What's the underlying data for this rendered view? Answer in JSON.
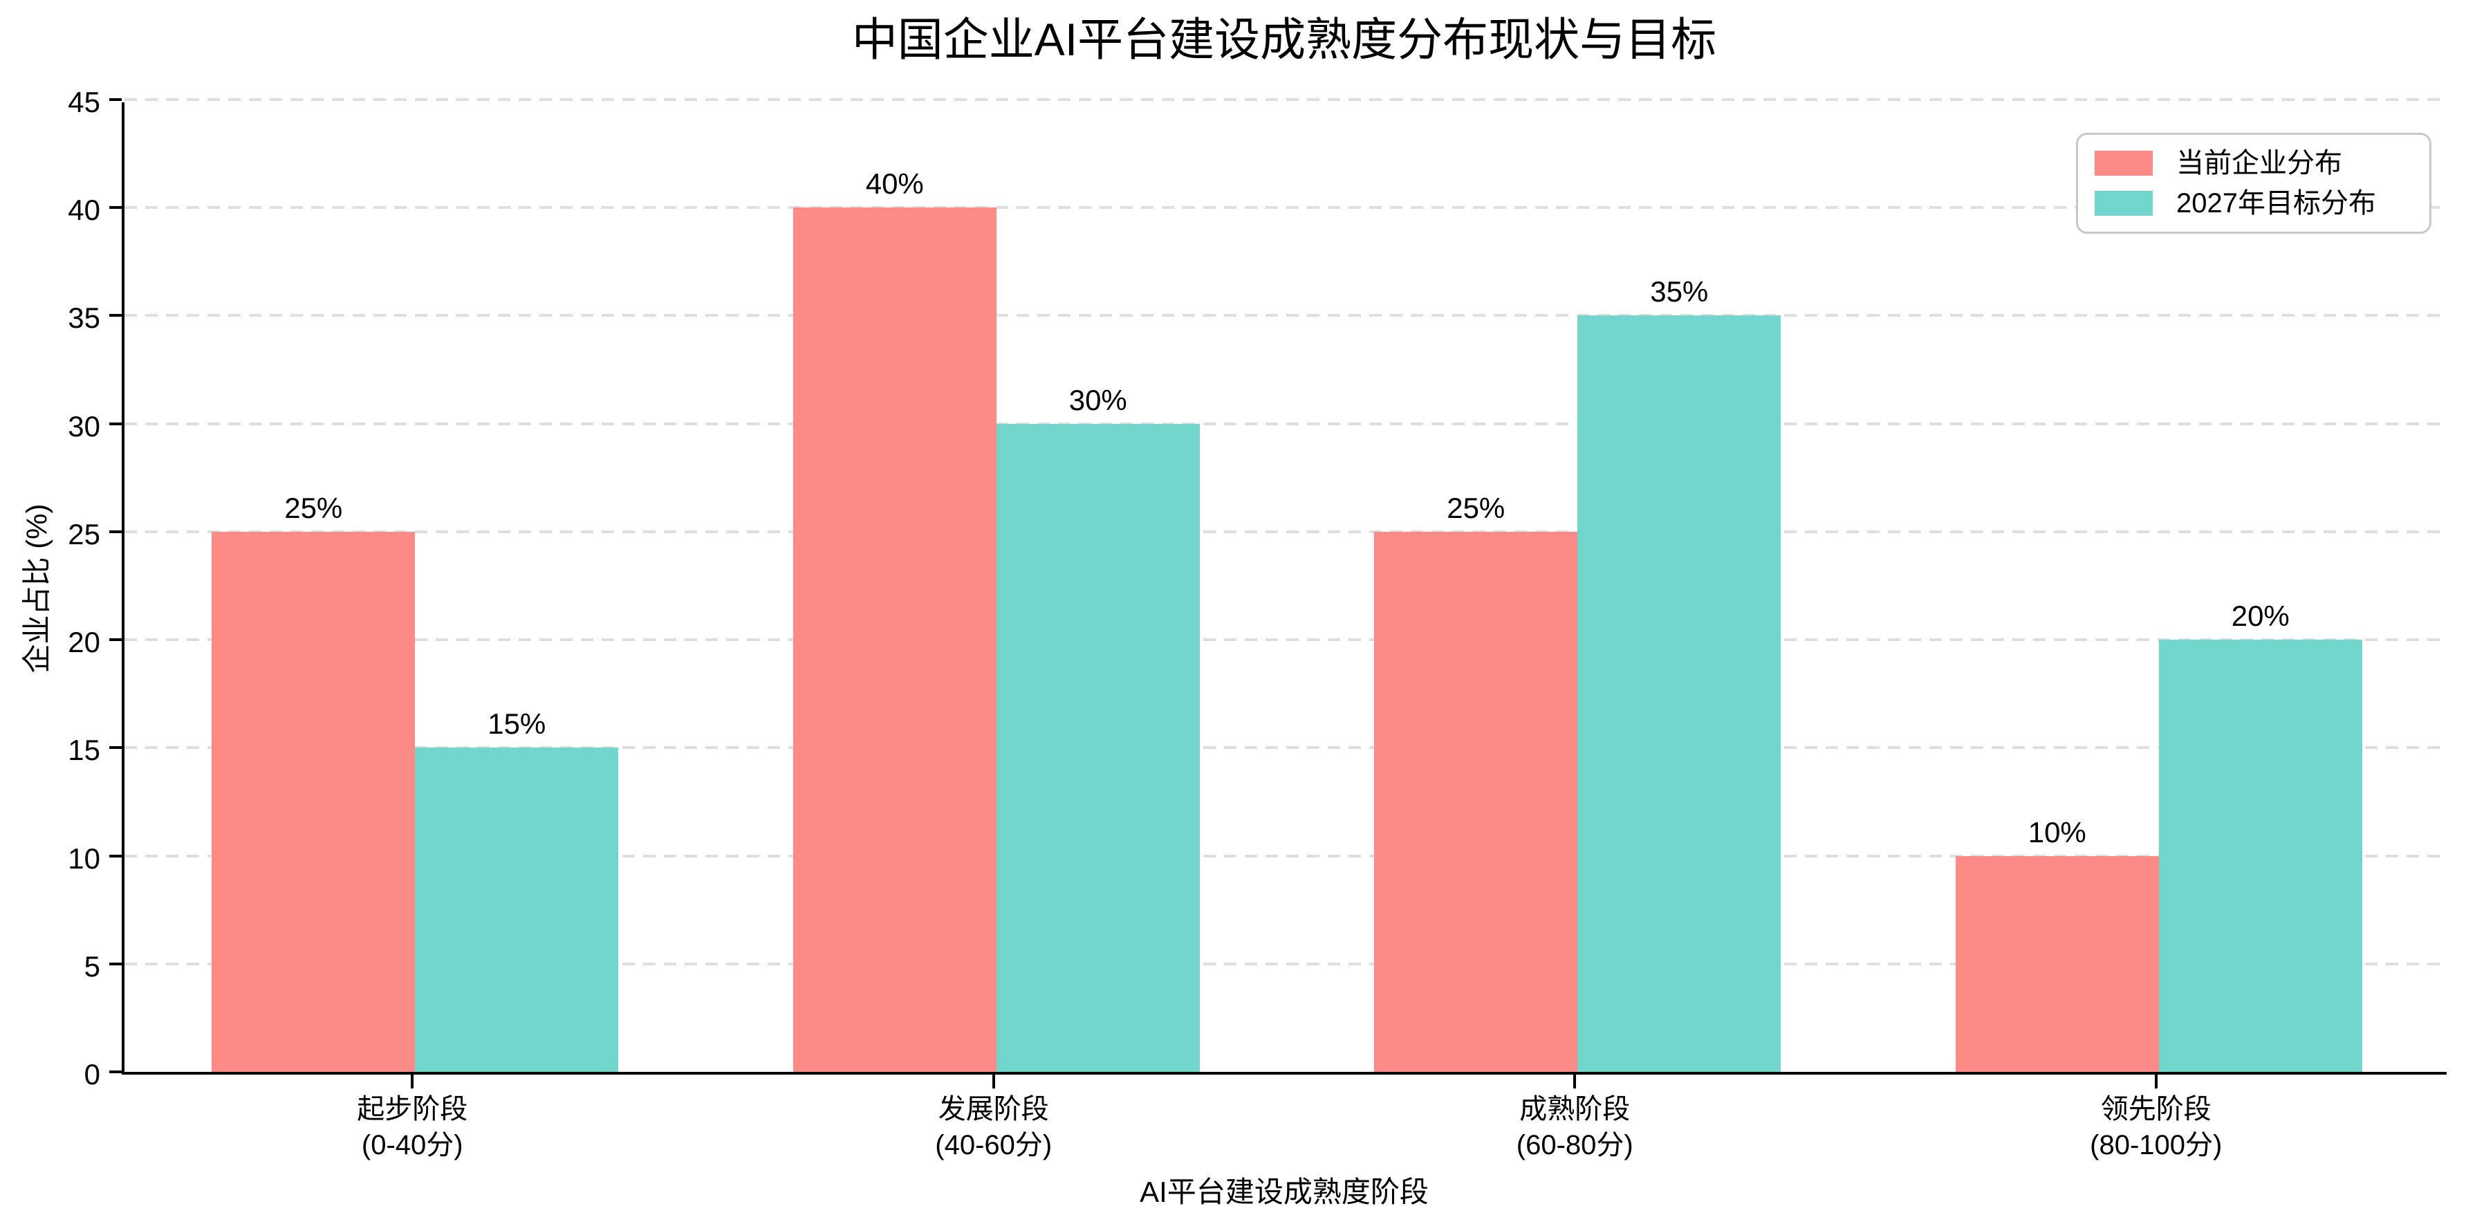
{
  "chart_data": {
    "type": "bar",
    "title": "中国企业AI平台建设成熟度分布现状与目标",
    "xlabel": "AI平台建设成熟度阶段",
    "ylabel": "企业占比 (%)",
    "categories": [
      "起步阶段\n(0-40分)",
      "发展阶段\n(40-60分)",
      "成熟阶段\n(60-80分)",
      "领先阶段\n(80-100分)"
    ],
    "series": [
      {
        "name": "当前企业分布",
        "color": "#FC8A86",
        "values": [
          25,
          40,
          25,
          10
        ]
      },
      {
        "name": "2027年目标分布",
        "color": "#72D6CC",
        "values": [
          15,
          30,
          35,
          20
        ]
      }
    ],
    "value_suffix": "%",
    "value_labels": [
      [
        "25%",
        "40%",
        "25%",
        "10%"
      ],
      [
        "15%",
        "30%",
        "35%",
        "20%"
      ]
    ],
    "ylim": [
      0,
      45
    ],
    "yticks": [
      0,
      5,
      10,
      15,
      20,
      25,
      30,
      35,
      40,
      45
    ],
    "grid": "dashed-horizontal",
    "legend_position": "top-right",
    "colors": {
      "bar_current": "#FC8A86",
      "bar_target": "#72D6CC",
      "axis": "#000000",
      "grid": "#DEDEDE",
      "text": "#000000",
      "legend_border": "#C8C8C8",
      "background": "#FFFFFF"
    }
  }
}
